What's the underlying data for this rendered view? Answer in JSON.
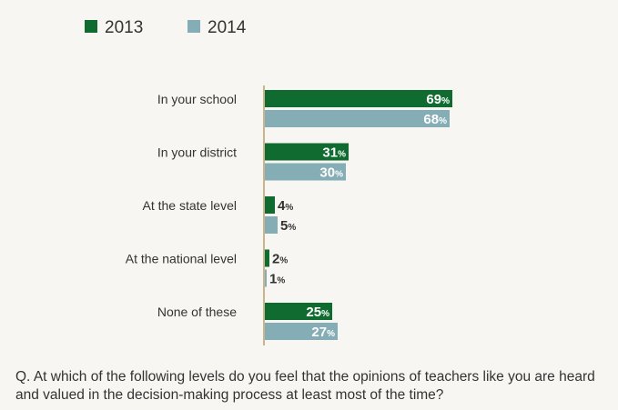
{
  "chart_data": {
    "type": "bar",
    "orientation": "horizontal",
    "categories": [
      "In your school",
      "In your district",
      "At the state level",
      "At the national level",
      "None of these"
    ],
    "series": [
      {
        "name": "2013",
        "color": "#0f6b2f",
        "values": [
          69,
          31,
          4,
          2,
          25
        ]
      },
      {
        "name": "2014",
        "color": "#85adb5",
        "values": [
          68,
          30,
          5,
          1,
          27
        ]
      }
    ],
    "unit": "%",
    "xlim": [
      0,
      100
    ],
    "legend_position": "top-left",
    "grid": false
  },
  "question": "Q. At which of the following levels do you feel that the opinions of teachers like you are heard and valued in the decision-making process at least most of the time?"
}
